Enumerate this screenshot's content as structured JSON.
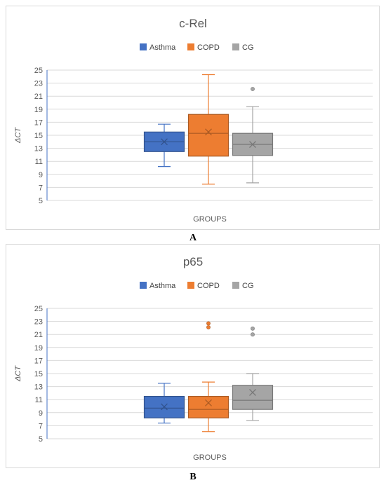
{
  "chart_data": [
    {
      "type": "boxplot",
      "title": "c-Rel",
      "xlabel": "GROUPS",
      "ylabel": "ΔCT",
      "ylim": [
        5,
        25
      ],
      "yticks": [
        5,
        7,
        9,
        11,
        13,
        15,
        17,
        19,
        21,
        23,
        25
      ],
      "grid": true,
      "legend_position": "top",
      "series": [
        {
          "name": "Asthma",
          "color": "#4472C4",
          "whisker_low": 10.2,
          "q1": 12.5,
          "median": 14.0,
          "q3": 15.5,
          "whisker_high": 16.7,
          "mean": 14.0,
          "outliers": []
        },
        {
          "name": "COPD",
          "color": "#ED7D31",
          "whisker_low": 7.5,
          "q1": 11.8,
          "median": 15.3,
          "q3": 18.2,
          "whisker_high": 24.3,
          "mean": 15.5,
          "outliers": []
        },
        {
          "name": "CG",
          "color": "#A5A5A5",
          "whisker_low": 7.7,
          "q1": 11.9,
          "median": 13.6,
          "q3": 15.3,
          "whisker_high": 19.4,
          "mean": 13.6,
          "outliers": [
            22.1
          ]
        }
      ]
    },
    {
      "type": "boxplot",
      "title": "p65",
      "xlabel": "GROUPS",
      "ylabel": "ΔCT",
      "ylim": [
        5,
        25
      ],
      "yticks": [
        5,
        7,
        9,
        11,
        13,
        15,
        17,
        19,
        21,
        23,
        25
      ],
      "grid": true,
      "legend_position": "top",
      "series": [
        {
          "name": "Asthma",
          "color": "#4472C4",
          "whisker_low": 7.4,
          "q1": 8.2,
          "median": 9.7,
          "q3": 11.5,
          "whisker_high": 13.5,
          "mean": 9.9,
          "outliers": []
        },
        {
          "name": "COPD",
          "color": "#ED7D31",
          "whisker_low": 6.1,
          "q1": 8.2,
          "median": 9.5,
          "q3": 11.5,
          "whisker_high": 13.7,
          "mean": 10.5,
          "outliers": [
            22.7,
            22.1
          ]
        },
        {
          "name": "CG",
          "color": "#A5A5A5",
          "whisker_low": 7.8,
          "q1": 9.5,
          "median": 10.9,
          "q3": 13.2,
          "whisker_high": 15.0,
          "mean": 12.1,
          "outliers": [
            21.9,
            21.0
          ]
        }
      ]
    }
  ],
  "panel_labels": [
    "A",
    "B"
  ]
}
